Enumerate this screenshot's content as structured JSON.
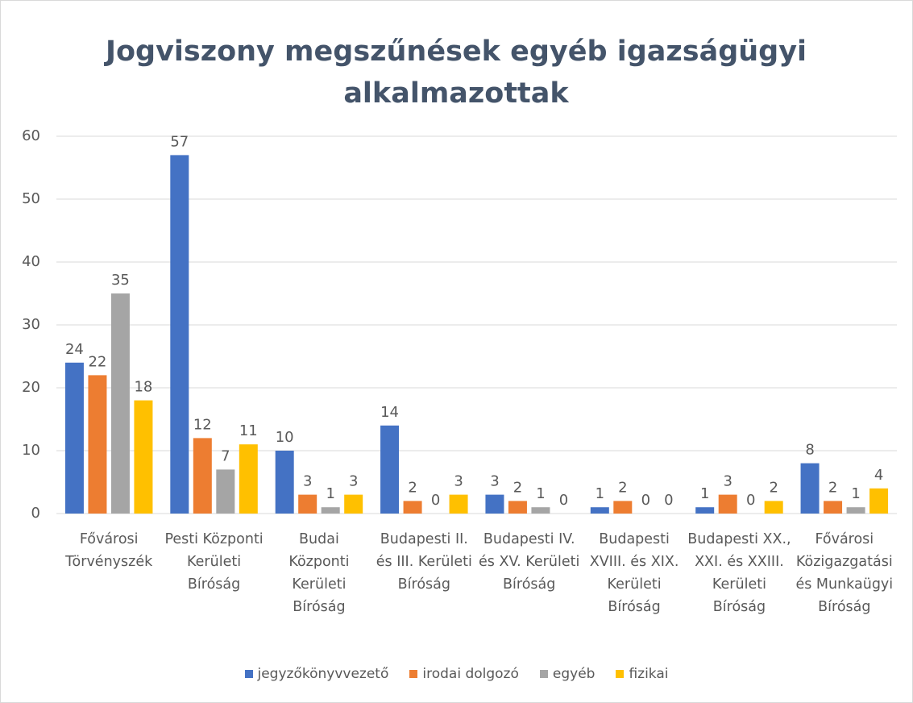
{
  "chart_data": {
    "type": "bar",
    "title": "Jogviszony megszűnések egyéb igazságügyi alkalmazottak",
    "categories": [
      "Fővárosi Törvényszék",
      "Pesti Központi Kerületi Bíróság",
      "Budai Központi Kerületi Bíróság",
      "Budapesti II. és III. Kerületi Bíróság",
      "Budapesti IV. és XV. Kerületi Bíróság",
      "Budapesti XVIII. és XIX. Kerületi Bíróság",
      "Budapesti XX., XXI. és XXIII. Kerületi Bíróság",
      "Fővárosi Közigazgatási és Munkaügyi Bíróság"
    ],
    "series": [
      {
        "name": "jegyzőkönyvvezető",
        "color": "#4472c4",
        "values": [
          24,
          57,
          10,
          14,
          3,
          1,
          1,
          8
        ]
      },
      {
        "name": "irodai dolgozó",
        "color": "#ed7d31",
        "values": [
          22,
          12,
          3,
          2,
          2,
          2,
          3,
          2
        ]
      },
      {
        "name": "egyéb",
        "color": "#a5a5a5",
        "values": [
          35,
          7,
          1,
          0,
          1,
          0,
          0,
          1
        ]
      },
      {
        "name": "fizikai",
        "color": "#ffc000",
        "values": [
          18,
          11,
          3,
          3,
          0,
          0,
          2,
          4
        ]
      }
    ],
    "ylim": [
      0,
      60
    ],
    "yticks": [
      0,
      10,
      20,
      30,
      40,
      50,
      60
    ],
    "grid": true,
    "legend": "bottom"
  }
}
